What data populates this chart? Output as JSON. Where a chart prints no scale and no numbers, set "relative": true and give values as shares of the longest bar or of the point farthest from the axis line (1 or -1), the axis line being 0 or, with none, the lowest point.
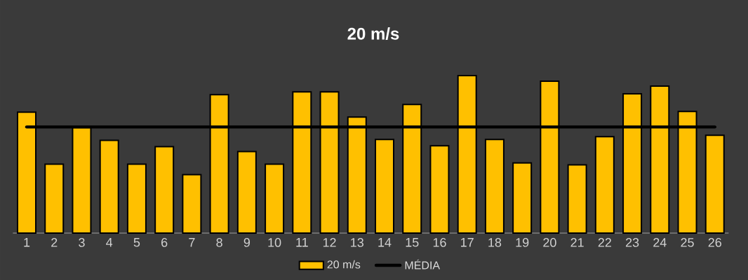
{
  "chart_data": {
    "type": "bar",
    "title": "20 m/s",
    "relative": true,
    "legend": "bottom",
    "categories": [
      "1",
      "2",
      "3",
      "4",
      "5",
      "6",
      "7",
      "8",
      "9",
      "10",
      "11",
      "12",
      "13",
      "14",
      "15",
      "16",
      "17",
      "18",
      "19",
      "20",
      "21",
      "22",
      "23",
      "24",
      "25",
      "26"
    ],
    "series": [
      {
        "name": "20 m/s",
        "color": "#ffc000",
        "values": [
          0.768,
          0.438,
          0.67,
          0.589,
          0.438,
          0.549,
          0.371,
          0.879,
          0.518,
          0.438,
          0.897,
          0.897,
          0.737,
          0.594,
          0.817,
          0.554,
          1,
          0.594,
          0.446,
          0.964,
          0.433,
          0.612,
          0.884,
          0.933,
          0.772,
          0.621
        ]
      },
      {
        "name": "MÉDIA",
        "type": "line",
        "color": "#000000",
        "values": [
          0.674,
          0.674,
          0.674,
          0.674,
          0.674,
          0.674,
          0.674,
          0.674,
          0.674,
          0.674,
          0.674,
          0.674,
          0.674,
          0.674,
          0.674,
          0.674,
          0.674,
          0.674,
          0.674,
          0.674,
          0.674,
          0.674,
          0.674,
          0.674,
          0.674,
          0.674
        ]
      }
    ]
  }
}
